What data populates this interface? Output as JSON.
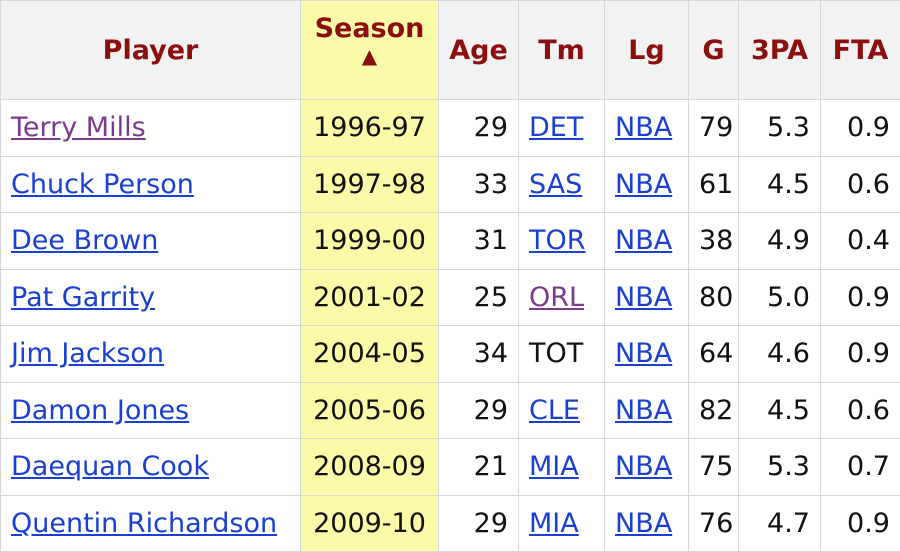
{
  "colors": {
    "header_text": "#8b0f0f",
    "link": "#1a3fd1",
    "visited_link": "#7a3b8c",
    "sorted_column": "#fafaa8"
  },
  "table": {
    "columns": {
      "player": "Player",
      "season": "Season",
      "sort_indicator": "▲",
      "age": "Age",
      "team": "Tm",
      "league": "Lg",
      "games": "G",
      "three_pa": "3PA",
      "fta": "FTA"
    },
    "rows": [
      {
        "player": "Terry Mills",
        "player_visited": true,
        "season": "1996-97",
        "age": "29",
        "team": "DET",
        "team_link": true,
        "team_visited": false,
        "league": "NBA",
        "games": "79",
        "three_pa": "5.3",
        "fta": "0.9"
      },
      {
        "player": "Chuck Person",
        "player_visited": false,
        "season": "1997-98",
        "age": "33",
        "team": "SAS",
        "team_link": true,
        "team_visited": false,
        "league": "NBA",
        "games": "61",
        "three_pa": "4.5",
        "fta": "0.6"
      },
      {
        "player": "Dee Brown",
        "player_visited": false,
        "season": "1999-00",
        "age": "31",
        "team": "TOR",
        "team_link": true,
        "team_visited": false,
        "league": "NBA",
        "games": "38",
        "three_pa": "4.9",
        "fta": "0.4"
      },
      {
        "player": "Pat Garrity",
        "player_visited": false,
        "season": "2001-02",
        "age": "25",
        "team": "ORL",
        "team_link": true,
        "team_visited": true,
        "league": "NBA",
        "games": "80",
        "three_pa": "5.0",
        "fta": "0.9"
      },
      {
        "player": "Jim Jackson",
        "player_visited": false,
        "season": "2004-05",
        "age": "34",
        "team": "TOT",
        "team_link": false,
        "team_visited": false,
        "league": "NBA",
        "games": "64",
        "three_pa": "4.6",
        "fta": "0.9"
      },
      {
        "player": "Damon Jones",
        "player_visited": false,
        "season": "2005-06",
        "age": "29",
        "team": "CLE",
        "team_link": true,
        "team_visited": false,
        "league": "NBA",
        "games": "82",
        "three_pa": "4.5",
        "fta": "0.6"
      },
      {
        "player": "Daequan Cook",
        "player_visited": false,
        "season": "2008-09",
        "age": "21",
        "team": "MIA",
        "team_link": true,
        "team_visited": false,
        "league": "NBA",
        "games": "75",
        "three_pa": "5.3",
        "fta": "0.7"
      },
      {
        "player": "Quentin Richardson",
        "player_visited": false,
        "season": "2009-10",
        "age": "29",
        "team": "MIA",
        "team_link": true,
        "team_visited": false,
        "league": "NBA",
        "games": "76",
        "three_pa": "4.7",
        "fta": "0.9"
      }
    ]
  }
}
